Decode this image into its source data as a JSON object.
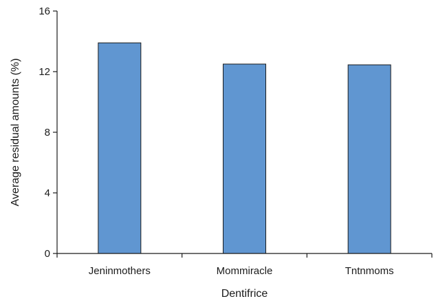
{
  "chart_data": {
    "type": "bar",
    "title": "",
    "xlabel": "Dentifrice",
    "ylabel": "Average residual amounts (%)",
    "categories": [
      "Jeninmothers",
      "Mommiracle",
      "Tntnmoms"
    ],
    "values": [
      13.9,
      12.5,
      12.45
    ],
    "ylim": [
      0,
      16
    ],
    "yticks": [
      0,
      4,
      8,
      12,
      16
    ],
    "ytick_labels": [
      "0",
      "4",
      "8",
      "12",
      "16"
    ],
    "grid": false,
    "legend": "none",
    "colors": {
      "bar_fill": "#6096d1",
      "bar_stroke": "#1a1a1a",
      "axis": "#1a1a1a"
    }
  }
}
